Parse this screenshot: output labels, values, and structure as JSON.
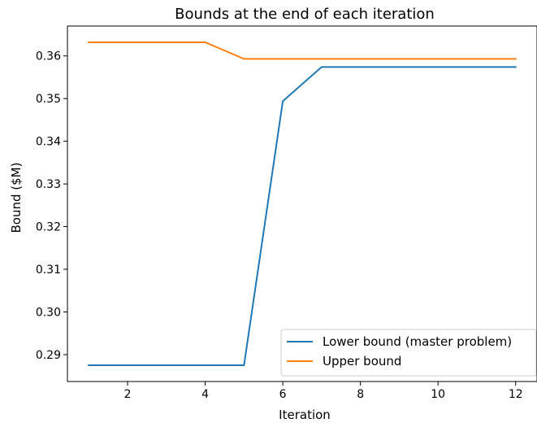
{
  "chart_data": {
    "type": "line",
    "title": "Bounds at the end of each iteration",
    "xlabel": "Iteration",
    "ylabel": "Bound ($M)",
    "xlim": [
      0.45,
      12.55
    ],
    "ylim": [
      0.2837,
      0.367
    ],
    "xticks": [
      2,
      4,
      6,
      8,
      10,
      12
    ],
    "yticks": [
      0.29,
      0.3,
      0.31,
      0.32,
      0.33,
      0.34,
      0.35,
      0.36
    ],
    "ytick_labels": [
      "0.29",
      "0.30",
      "0.31",
      "0.32",
      "0.33",
      "0.34",
      "0.35",
      "0.36"
    ],
    "grid": false,
    "legend_position": "lower-right",
    "x": [
      1,
      2,
      3,
      4,
      5,
      6,
      7,
      8,
      9,
      10,
      11,
      12
    ],
    "series": [
      {
        "name": "Lower bound (master problem)",
        "color": "#1f77b4",
        "values": [
          0.2875,
          0.2875,
          0.2875,
          0.2875,
          0.2875,
          0.3494,
          0.3574,
          0.3574,
          0.3574,
          0.3574,
          0.3574,
          0.3574
        ]
      },
      {
        "name": "Upper bound",
        "color": "#ff7f0e",
        "values": [
          0.3632,
          0.3632,
          0.3632,
          0.3632,
          0.3593,
          0.3593,
          0.3593,
          0.3593,
          0.3593,
          0.3593,
          0.3593,
          0.3593
        ]
      }
    ]
  }
}
